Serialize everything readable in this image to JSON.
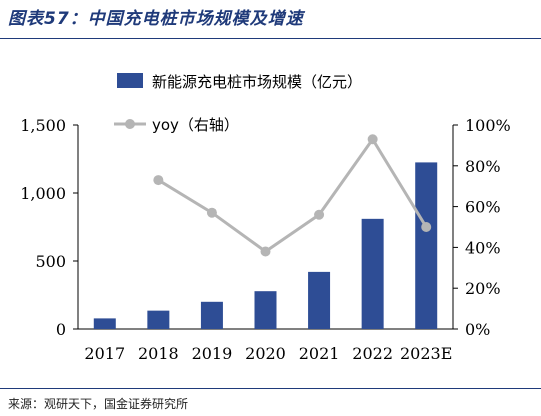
{
  "figure": {
    "title": "图表57：中国充电桩市场规模及增速",
    "source": "来源：观研天下，国金证券研究所"
  },
  "colors": {
    "bar": "#2e4d95",
    "line": "#b5b5b5",
    "title": "#1f3a7a"
  },
  "chart_data": {
    "type": "bar",
    "categories": [
      "2017",
      "2018",
      "2019",
      "2020",
      "2021",
      "2022",
      "2023E"
    ],
    "series": [
      {
        "name": "新能源充电桩市场规模（亿元）",
        "type": "bar",
        "axis": "left",
        "values": [
          78,
          135,
          200,
          278,
          420,
          810,
          1225
        ]
      },
      {
        "name": "yoy（右轴）",
        "type": "line",
        "axis": "right",
        "values": [
          null,
          73,
          57,
          38,
          56,
          93,
          50
        ]
      }
    ],
    "y_left": {
      "ticks": [
        "0",
        "500",
        "1,000",
        "1,500"
      ],
      "lim": [
        0,
        1500
      ]
    },
    "y_right": {
      "ticks": [
        "0%",
        "20%",
        "40%",
        "60%",
        "80%",
        "100%"
      ],
      "lim": [
        0,
        100
      ]
    },
    "legend": "top",
    "grid": false
  }
}
